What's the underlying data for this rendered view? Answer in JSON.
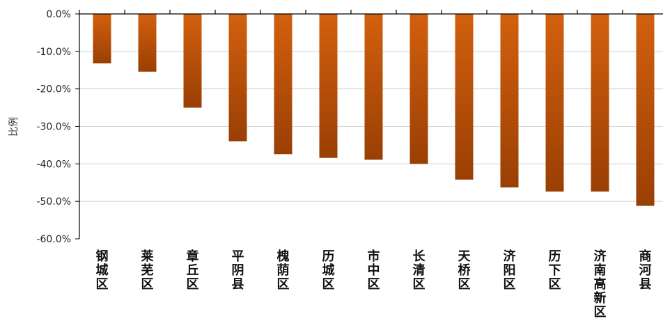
{
  "chart_data": {
    "type": "bar",
    "title": "",
    "xlabel": "",
    "ylabel": "比例",
    "categories": [
      "钢城区",
      "莱芜区",
      "章丘区",
      "平阴县",
      "槐荫区",
      "历城区",
      "市中区",
      "长清区",
      "天桥区",
      "济阳区",
      "历下区",
      "济南高新区",
      "商河县"
    ],
    "values": [
      -13.2,
      -15.4,
      -25.0,
      -34.0,
      -37.4,
      -38.4,
      -38.9,
      -40.0,
      -44.2,
      -46.3,
      -47.4,
      -47.4,
      -51.2
    ],
    "ylim": [
      -60,
      0
    ],
    "yticks": [
      0,
      -10,
      -20,
      -30,
      -40,
      -50,
      -60
    ],
    "ytick_labels": [
      "0.0%",
      "-10.0%",
      "-20.0%",
      "-30.0%",
      "-40.0%",
      "-50.0%",
      "-60.0%"
    ],
    "grid": true,
    "legend": "none",
    "bar_color_top": "#d2600e",
    "bar_color_bottom": "#9a3f04"
  }
}
